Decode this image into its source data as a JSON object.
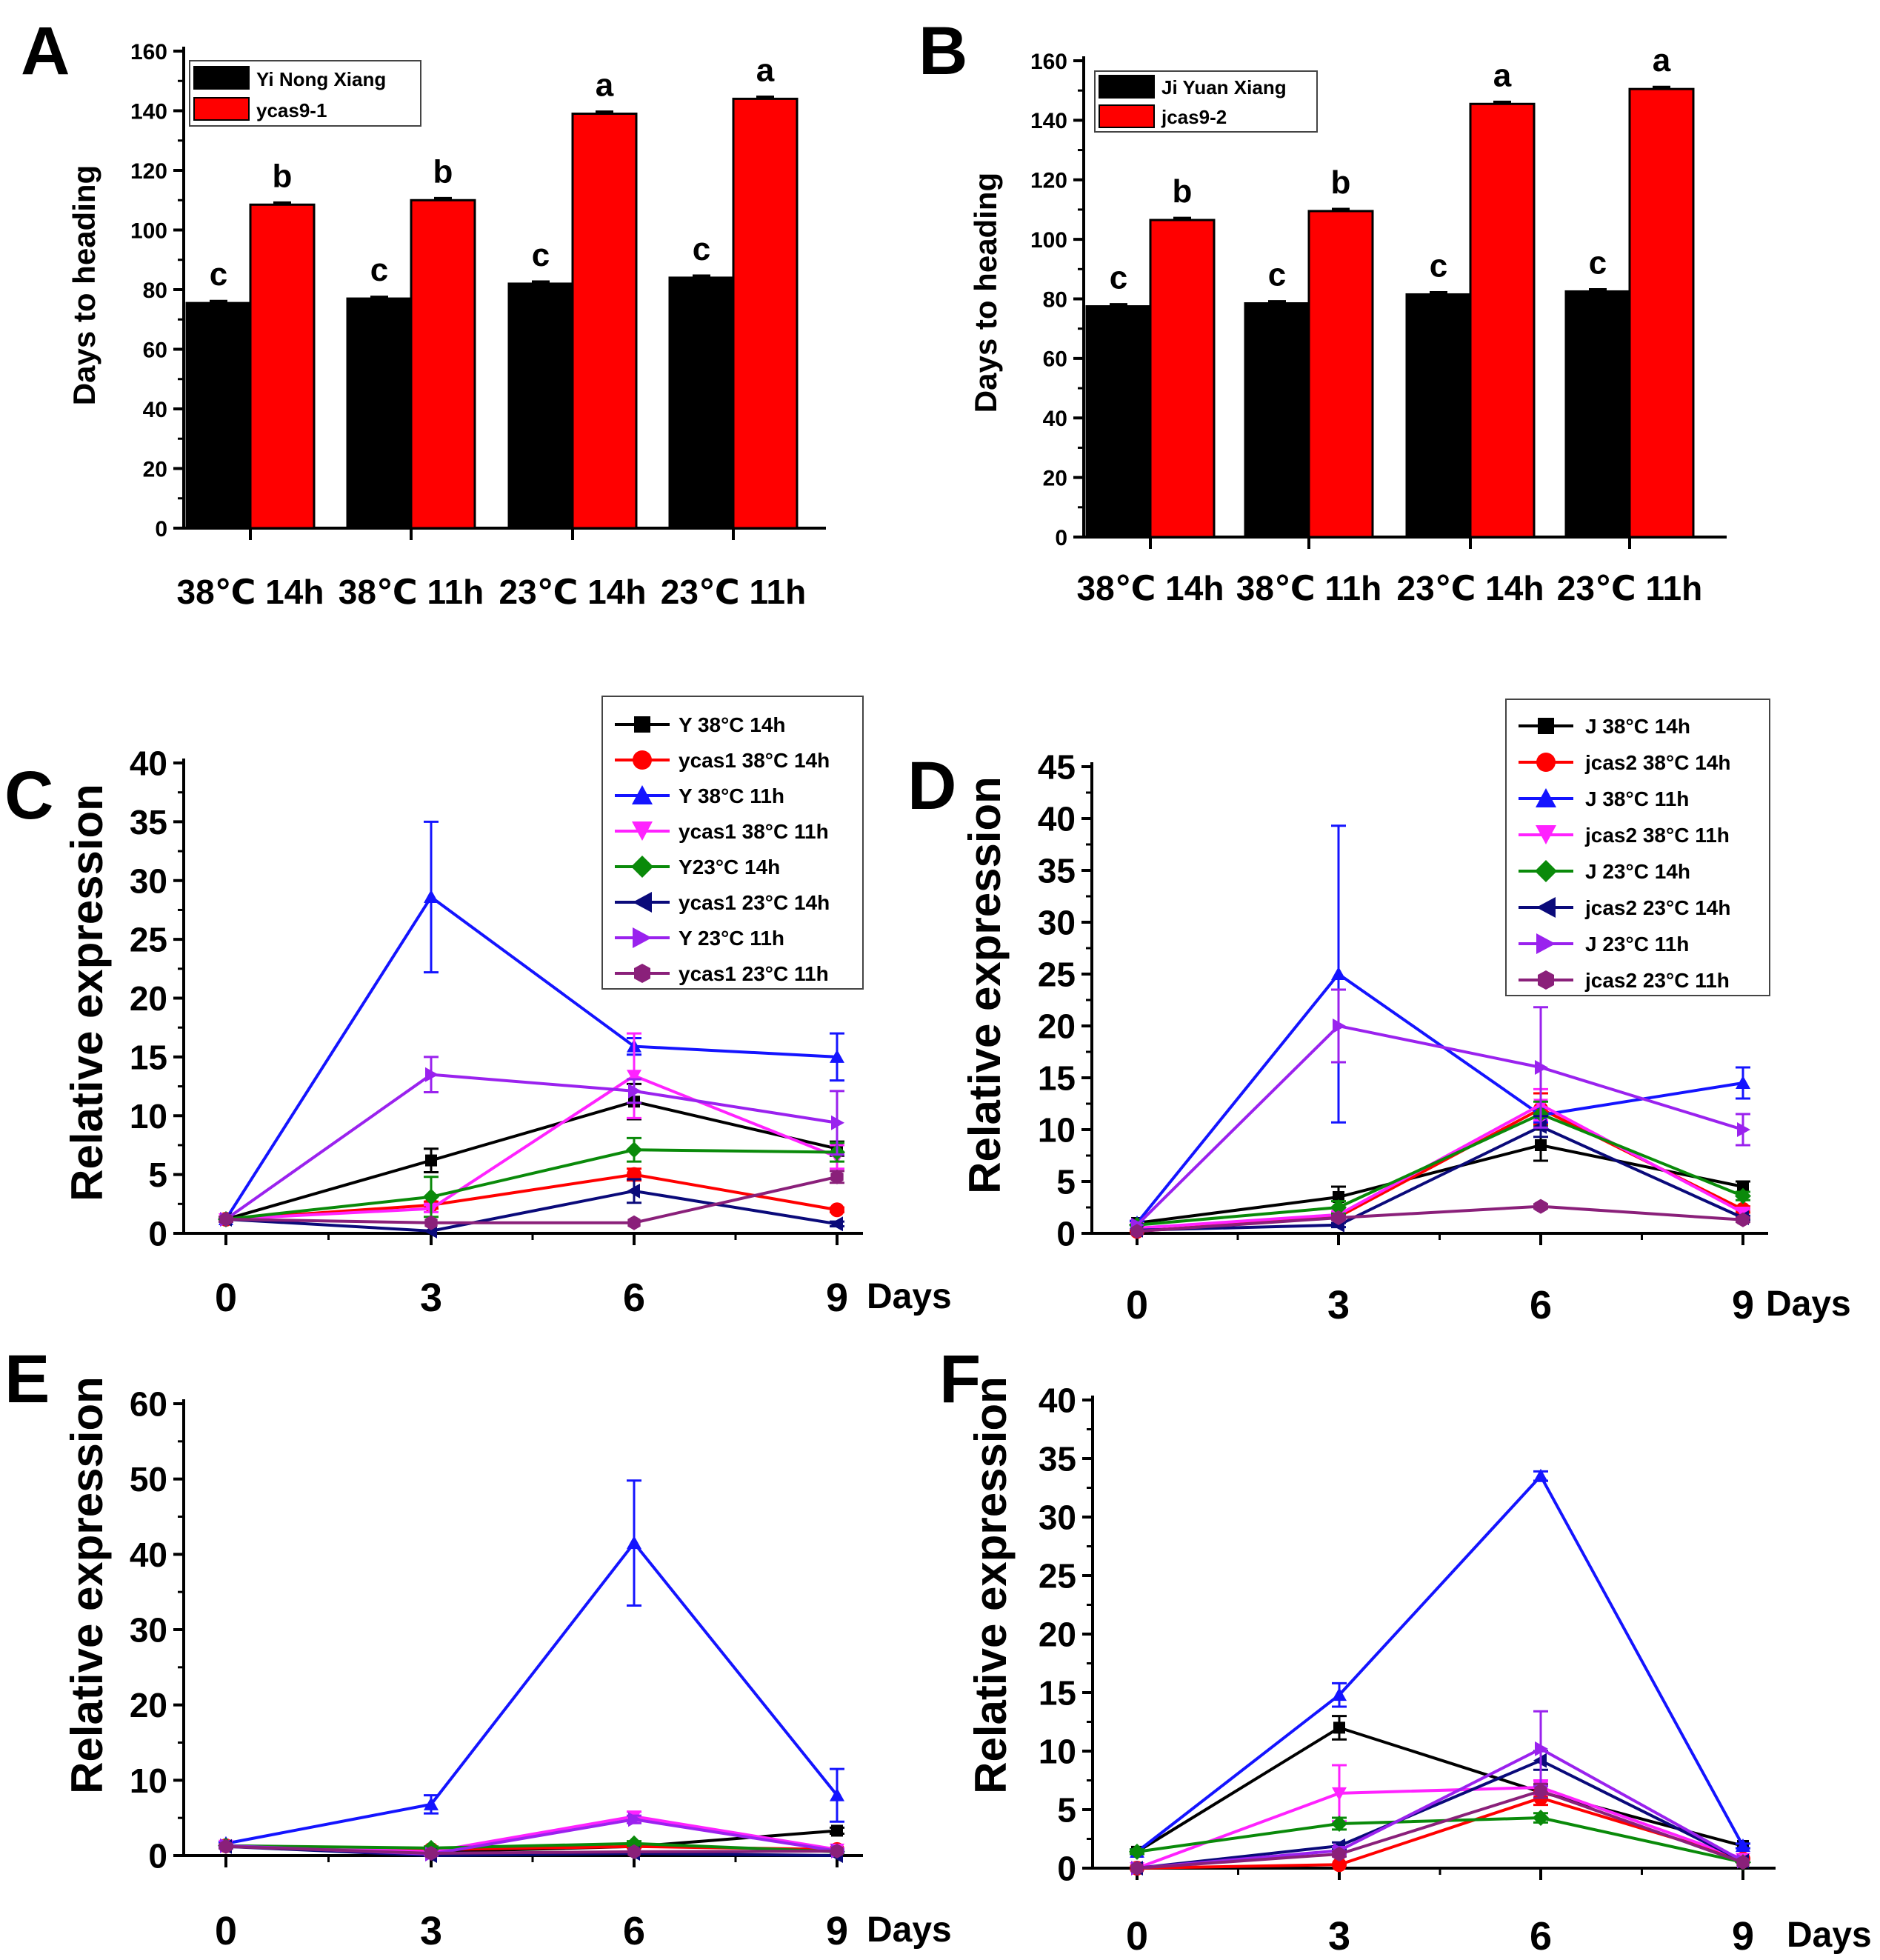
{
  "colors": {
    "black": "#000000",
    "red": "#ff0000",
    "blue": "#1414ff",
    "magenta": "#ff22ff",
    "green": "#0a8a0a",
    "navy": "#0a0a7a",
    "violet": "#9a22ee",
    "purple": "#8a207a"
  },
  "chart_data": [
    {
      "panel": "A",
      "type": "bar",
      "ylabel": "Days to heading",
      "ylim": [
        0,
        160
      ],
      "yticks": [
        "0",
        "20",
        "40",
        "60",
        "80",
        "100",
        "120",
        "140",
        "160"
      ],
      "categories": [
        "38℃ 14h",
        "38℃ 11h",
        "23℃ 14h",
        "23℃ 11h"
      ],
      "series": [
        {
          "name": "Yi Nong Xiang",
          "color": "black",
          "values": [
            75.5,
            77,
            82,
            84
          ],
          "errors": [
            0.6,
            0.5,
            0.6,
            0.6
          ],
          "letters": [
            "c",
            "c",
            "c",
            "c"
          ]
        },
        {
          "name": "ycas9-1",
          "color": "red",
          "values": [
            108.5,
            110,
            139,
            144
          ],
          "errors": [
            0.6,
            0.6,
            0.6,
            0.6
          ],
          "letters": [
            "b",
            "b",
            "a",
            "a"
          ]
        }
      ]
    },
    {
      "panel": "B",
      "type": "bar",
      "ylabel": "Days to heading",
      "ylim": [
        0,
        160
      ],
      "yticks": [
        "0",
        "20",
        "40",
        "60",
        "80",
        "100",
        "120",
        "140",
        "160"
      ],
      "categories": [
        "38℃ 14h",
        "38℃ 11h",
        "23℃ 14h",
        "23℃ 11h"
      ],
      "series": [
        {
          "name": "Ji Yuan Xiang",
          "color": "black",
          "values": [
            77.5,
            78.5,
            81.5,
            82.5
          ],
          "errors": [
            0.6,
            0.6,
            0.6,
            0.6
          ],
          "letters": [
            "c",
            "c",
            "c",
            "c"
          ]
        },
        {
          "name": "jcas9-2",
          "color": "red",
          "values": [
            106.5,
            109.5,
            145.5,
            150.5
          ],
          "errors": [
            0.6,
            0.6,
            0.6,
            0.6
          ],
          "letters": [
            "b",
            "b",
            "a",
            "a"
          ]
        }
      ]
    },
    {
      "panel": "C",
      "type": "line",
      "ylabel": "Relative expression",
      "xlabel": "Days",
      "x": [
        0,
        3,
        6,
        9
      ],
      "xticks": [
        "0",
        "3",
        "6",
        "9"
      ],
      "ylim": [
        0,
        40
      ],
      "yticks": [
        "0",
        "5",
        "10",
        "15",
        "20",
        "25",
        "30",
        "35",
        "40"
      ],
      "series": [
        {
          "name": "Y 38°C 14h",
          "color": "black",
          "marker": "square",
          "values": [
            1.2,
            6.2,
            11.2,
            7.2
          ],
          "errors": [
            0.2,
            1.0,
            1.5,
            0.6
          ]
        },
        {
          "name": "ycas1  38°C 14h",
          "color": "red",
          "marker": "circle",
          "values": [
            1.2,
            2.4,
            5.0,
            2.0
          ],
          "errors": [
            0.2,
            0.3,
            0.5,
            0.2
          ]
        },
        {
          "name": "Y 38°C 11h",
          "color": "blue",
          "marker": "triangle-up",
          "values": [
            1.2,
            28.6,
            15.9,
            15.0
          ],
          "errors": [
            0.2,
            6.4,
            0.7,
            2.0
          ]
        },
        {
          "name": "ycas1 38°C 11h",
          "color": "magenta",
          "marker": "triangle-down",
          "values": [
            1.2,
            2.1,
            13.4,
            6.5
          ],
          "errors": [
            0.2,
            0.3,
            3.6,
            1.0
          ]
        },
        {
          "name": "Y23°C 14h",
          "color": "green",
          "marker": "diamond",
          "values": [
            1.2,
            3.1,
            7.1,
            6.9
          ],
          "errors": [
            0.2,
            1.7,
            1.0,
            0.8
          ]
        },
        {
          "name": "ycas1 23°C 14h",
          "color": "navy",
          "marker": "triangle-left",
          "values": [
            1.2,
            0.2,
            3.6,
            0.8
          ],
          "errors": [
            0.2,
            0.1,
            1.0,
            0.2
          ]
        },
        {
          "name": "Y 23°C 11h",
          "color": "violet",
          "marker": "triangle-right",
          "values": [
            1.2,
            13.5,
            12.1,
            9.4
          ],
          "errors": [
            0.2,
            1.5,
            1.0,
            2.7
          ]
        },
        {
          "name": "ycas1 23°C 11h",
          "color": "purple",
          "marker": "hexagon",
          "values": [
            1.2,
            0.9,
            0.9,
            4.8
          ],
          "errors": [
            0.2,
            0.1,
            0.1,
            0.5
          ]
        }
      ]
    },
    {
      "panel": "D",
      "type": "line",
      "ylabel": "Relative expression",
      "xlabel": "Days",
      "x": [
        0,
        3,
        6,
        9
      ],
      "xticks": [
        "0",
        "3",
        "6",
        "9"
      ],
      "ylim": [
        0,
        45
      ],
      "yticks": [
        "0",
        "5",
        "10",
        "15",
        "20",
        "25",
        "30",
        "35",
        "40",
        "45"
      ],
      "series": [
        {
          "name": "J 38°C 14h",
          "color": "black",
          "marker": "square",
          "values": [
            1.0,
            3.5,
            8.5,
            4.5
          ],
          "errors": [
            0.2,
            1.0,
            1.5,
            0.5
          ]
        },
        {
          "name": "jcas2  38°C 14h",
          "color": "red",
          "marker": "circle",
          "values": [
            0.2,
            1.6,
            12.0,
            2.3
          ],
          "errors": [
            0.1,
            0.3,
            1.5,
            0.3
          ]
        },
        {
          "name": "J 38°C 11h",
          "color": "blue",
          "marker": "triangle-up",
          "values": [
            1.0,
            25.0,
            11.4,
            14.5
          ],
          "errors": [
            0.2,
            14.3,
            0.7,
            1.5
          ]
        },
        {
          "name": "jcas2 38°C 11h",
          "color": "magenta",
          "marker": "triangle-down",
          "values": [
            0.5,
            1.8,
            12.4,
            2.0
          ],
          "errors": [
            0.1,
            0.3,
            1.5,
            0.3
          ]
        },
        {
          "name": "J 23°C 14h",
          "color": "green",
          "marker": "diamond",
          "values": [
            0.8,
            2.5,
            11.5,
            3.6
          ],
          "errors": [
            0.1,
            0.6,
            1.2,
            0.4
          ]
        },
        {
          "name": "jcas2 23°C 14h",
          "color": "navy",
          "marker": "triangle-left",
          "values": [
            0.3,
            0.8,
            10.3,
            1.5
          ],
          "errors": [
            0.1,
            0.2,
            1.0,
            0.2
          ]
        },
        {
          "name": "J 23°C 11h",
          "color": "violet",
          "marker": "triangle-right",
          "values": [
            0.8,
            20.0,
            16.0,
            10.0
          ],
          "errors": [
            0.1,
            3.5,
            5.8,
            1.5
          ]
        },
        {
          "name": "jcas2 23°C 11h",
          "color": "purple",
          "marker": "hexagon",
          "values": [
            0.2,
            1.5,
            2.6,
            1.3
          ],
          "errors": [
            0.1,
            0.2,
            0.2,
            0.2
          ]
        }
      ]
    },
    {
      "panel": "E",
      "type": "line",
      "ylabel": "Relative expression",
      "xlabel": "Days",
      "x": [
        0,
        3,
        6,
        9
      ],
      "xticks": [
        "0",
        "3",
        "6",
        "9"
      ],
      "ylim": [
        0,
        60
      ],
      "yticks": [
        "0",
        "10",
        "20",
        "30",
        "40",
        "50",
        "60"
      ],
      "series": [
        {
          "name": "black",
          "color": "black",
          "marker": "square",
          "values": [
            1.3,
            0.5,
            1.2,
            3.3
          ],
          "errors": [
            0.2,
            0.2,
            0.2,
            0.4
          ]
        },
        {
          "name": "red",
          "color": "red",
          "marker": "circle",
          "values": [
            1.3,
            0.8,
            1.2,
            0.8
          ],
          "errors": [
            0.2,
            0.2,
            0.2,
            0.2
          ]
        },
        {
          "name": "blue",
          "color": "blue",
          "marker": "triangle-up",
          "values": [
            1.6,
            6.8,
            41.5,
            8.0
          ],
          "errors": [
            0.2,
            1.2,
            8.3,
            3.5
          ]
        },
        {
          "name": "magenta",
          "color": "magenta",
          "marker": "triangle-down",
          "values": [
            1.3,
            0.5,
            5.2,
            0.8
          ],
          "errors": [
            0.2,
            0.2,
            0.6,
            0.2
          ]
        },
        {
          "name": "green",
          "color": "green",
          "marker": "diamond",
          "values": [
            1.3,
            1.0,
            1.6,
            0.5
          ],
          "errors": [
            0.2,
            0.2,
            0.3,
            0.2
          ]
        },
        {
          "name": "navy",
          "color": "navy",
          "marker": "triangle-left",
          "values": [
            1.2,
            0.0,
            0.3,
            0.0
          ],
          "errors": [
            0.2,
            0.1,
            0.1,
            0.1
          ]
        },
        {
          "name": "violet",
          "color": "violet",
          "marker": "triangle-right",
          "values": [
            1.3,
            0.2,
            4.8,
            0.6
          ],
          "errors": [
            0.2,
            0.2,
            0.5,
            0.2
          ]
        },
        {
          "name": "purple",
          "color": "purple",
          "marker": "hexagon",
          "values": [
            1.2,
            0.3,
            0.5,
            0.6
          ],
          "errors": [
            0.2,
            0.1,
            0.1,
            0.1
          ]
        }
      ]
    },
    {
      "panel": "F",
      "type": "line",
      "ylabel": "Relative expression",
      "xlabel": "Days",
      "x": [
        0,
        3,
        6,
        9
      ],
      "xticks": [
        "0",
        "3",
        "6",
        "9"
      ],
      "ylim": [
        0,
        40
      ],
      "yticks": [
        "0",
        "5",
        "10",
        "15",
        "20",
        "25",
        "30",
        "35",
        "40"
      ],
      "series": [
        {
          "name": "black",
          "color": "black",
          "marker": "square",
          "values": [
            1.4,
            12.0,
            6.5,
            1.9
          ],
          "errors": [
            0.2,
            1.0,
            0.6,
            0.2
          ]
        },
        {
          "name": "red",
          "color": "red",
          "marker": "circle",
          "values": [
            0.0,
            0.3,
            6.0,
            0.8
          ],
          "errors": [
            0.1,
            0.1,
            0.6,
            0.1
          ]
        },
        {
          "name": "blue",
          "color": "blue",
          "marker": "triangle-up",
          "values": [
            1.4,
            14.8,
            33.5,
            1.9
          ],
          "errors": [
            0.2,
            1.0,
            0.4,
            0.2
          ]
        },
        {
          "name": "magenta",
          "color": "magenta",
          "marker": "triangle-down",
          "values": [
            0.0,
            6.4,
            6.9,
            0.8
          ],
          "errors": [
            0.1,
            2.4,
            0.6,
            0.1
          ]
        },
        {
          "name": "green",
          "color": "green",
          "marker": "diamond",
          "values": [
            1.4,
            3.8,
            4.3,
            0.5
          ],
          "errors": [
            0.2,
            0.5,
            0.4,
            0.1
          ]
        },
        {
          "name": "navy",
          "color": "navy",
          "marker": "triangle-left",
          "values": [
            0.0,
            1.9,
            9.2,
            0.6
          ],
          "errors": [
            0.1,
            0.3,
            0.8,
            0.1
          ]
        },
        {
          "name": "violet",
          "color": "violet",
          "marker": "triangle-right",
          "values": [
            0.0,
            1.5,
            10.2,
            0.6
          ],
          "errors": [
            0.1,
            0.3,
            3.2,
            0.1
          ]
        },
        {
          "name": "purple",
          "color": "purple",
          "marker": "hexagon",
          "values": [
            0.0,
            1.2,
            6.6,
            0.5
          ],
          "errors": [
            0.1,
            0.2,
            0.6,
            0.1
          ]
        }
      ]
    }
  ]
}
